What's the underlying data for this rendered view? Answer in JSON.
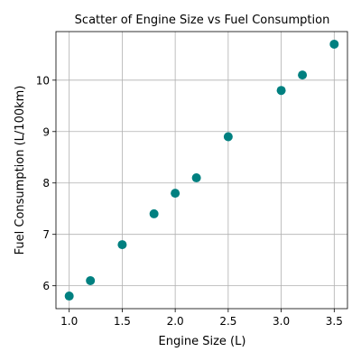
{
  "chart_data": {
    "type": "scatter",
    "title": "Scatter of Engine Size vs Fuel Consumption",
    "xlabel": "Engine Size (L)",
    "ylabel": "Fuel Consumption (L/100km)",
    "xlim": [
      0.875,
      3.625
    ],
    "ylim": [
      5.555,
      10.945
    ],
    "xticks": [
      1.0,
      1.5,
      2.0,
      2.5,
      3.0,
      3.5
    ],
    "xtick_labels": [
      "1.0",
      "1.5",
      "2.0",
      "2.5",
      "3.0",
      "3.5"
    ],
    "yticks": [
      6,
      7,
      8,
      9,
      10
    ],
    "ytick_labels": [
      "6",
      "7",
      "8",
      "9",
      "10"
    ],
    "grid": true,
    "marker_color": "#008080",
    "points": [
      {
        "x": 1.0,
        "y": 5.8
      },
      {
        "x": 1.2,
        "y": 6.1
      },
      {
        "x": 1.5,
        "y": 6.8
      },
      {
        "x": 1.8,
        "y": 7.4
      },
      {
        "x": 2.0,
        "y": 7.8
      },
      {
        "x": 2.2,
        "y": 8.1
      },
      {
        "x": 2.5,
        "y": 8.9
      },
      {
        "x": 3.0,
        "y": 9.8
      },
      {
        "x": 3.2,
        "y": 10.1
      },
      {
        "x": 3.5,
        "y": 10.7
      }
    ]
  }
}
